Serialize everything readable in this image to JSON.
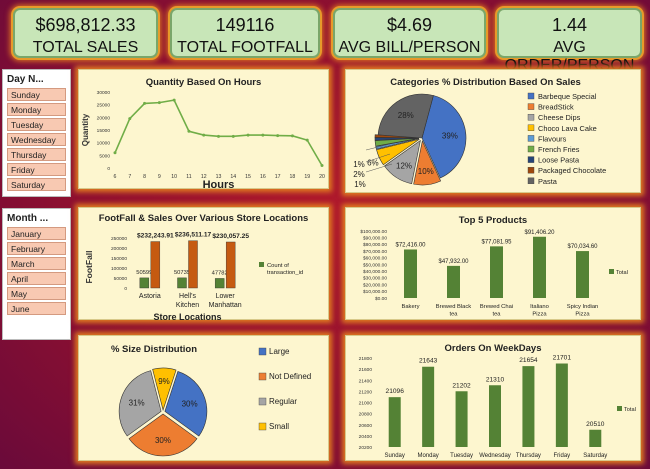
{
  "kpis": [
    {
      "value": "$698,812.33",
      "label": "TOTAL SALES"
    },
    {
      "value": "149116",
      "label": "TOTAL FOOTFALL"
    },
    {
      "value": "$4.69",
      "label": "AVG BILL/PERSON"
    },
    {
      "value": "1.44",
      "label": "AVG ORDER/PERSON"
    }
  ],
  "day_slicer": {
    "title": "Day N...",
    "items": [
      "Sunday",
      "Monday",
      "Tuesday",
      "Wednesday",
      "Thursday",
      "Friday",
      "Saturday"
    ]
  },
  "month_slicer": {
    "title": "Month ...",
    "items": [
      "January",
      "February",
      "March",
      "April",
      "May",
      "June"
    ]
  },
  "chart_data": [
    {
      "type": "line",
      "title": "Quantity Based On Hours",
      "xlabel": "Hours",
      "ylabel": "Quantity",
      "x": [
        6,
        7,
        8,
        9,
        10,
        11,
        12,
        13,
        14,
        15,
        16,
        17,
        18,
        19,
        20
      ],
      "values": [
        6000,
        19500,
        25500,
        25800,
        26800,
        14500,
        13000,
        12500,
        12500,
        13000,
        13000,
        12800,
        12700,
        11000,
        1000
      ],
      "ylim": [
        0,
        30000
      ],
      "yticks": [
        0,
        5000,
        10000,
        15000,
        20000,
        25000,
        30000
      ],
      "color": "#70ad47"
    },
    {
      "type": "pie",
      "title": "Categories % Distribution Based On Sales",
      "slices": [
        {
          "label": "Barbeque Special",
          "value": 39,
          "text": "39%",
          "color": "#4472c4"
        },
        {
          "label": "BreadStick",
          "value": 10,
          "text": "10%",
          "color": "#ed7d31"
        },
        {
          "label": "Cheese Dips",
          "value": 12,
          "text": "12%",
          "color": "#a5a5a5"
        },
        {
          "label": "Choco Lava Cake",
          "value": 6,
          "text": "6%",
          "color": "#ffc000"
        },
        {
          "label": "Flavours",
          "value": 1,
          "text": "1%",
          "color": "#5b9bd5"
        },
        {
          "label": "French Fries",
          "value": 2,
          "text": "2%",
          "color": "#70ad47"
        },
        {
          "label": "Loose Pasta",
          "value": 1,
          "text": "1%",
          "color": "#264478"
        },
        {
          "label": "Packaged Chocolate",
          "value": 1,
          "text": "1%",
          "color": "#9e480e"
        },
        {
          "label": "Pasta",
          "value": 28,
          "text": "28%",
          "color": "#636363"
        }
      ]
    },
    {
      "type": "bar",
      "title": "FootFall & Sales Over Various Store Locations",
      "xlabel": "Store Locations",
      "ylabel": "FootFall",
      "categories": [
        "Astoria",
        "Hell's Kitchen",
        "Lower Manhattan"
      ],
      "series": [
        {
          "name": "Count of transaction_id",
          "values": [
            50599,
            50735,
            47782
          ],
          "labels": [
            "50599",
            "50735",
            "47782"
          ],
          "color": "#548235"
        },
        {
          "values": [
            232243.91,
            236511.17,
            230057.25
          ],
          "labels": [
            "$232,243.91",
            "$236,511.17",
            "$230,057.25"
          ],
          "color": "#c55a11"
        }
      ],
      "ylim": [
        0,
        250000
      ],
      "yticks": [
        "0",
        "50000",
        "100000",
        "150000",
        "200000",
        "250000"
      ]
    },
    {
      "type": "bar",
      "title": "Top 5 Products",
      "categories": [
        "Bakery",
        "Brewed Black tea",
        "Brewed Chai tea",
        "Italiano Pizza",
        "Spicy Indian Pizza"
      ],
      "values": [
        72416.0,
        47932.0,
        77081.95,
        91406.2,
        70034.6
      ],
      "labels": [
        "$72,416.00",
        "$47,932.00",
        "$77,081.95",
        "$91,406.20",
        "$70,034.60"
      ],
      "legend": "Total",
      "ylim": [
        0,
        100000
      ],
      "yticks": [
        "$0.00",
        "$10,000.00",
        "$20,000.00",
        "$30,000.00",
        "$40,000.00",
        "$50,000.00",
        "$60,000.00",
        "$70,000.00",
        "$80,000.00",
        "$90,000.00",
        "$100,000.00"
      ],
      "color": "#548235"
    },
    {
      "type": "pie",
      "title": "% Size Distribution",
      "slices": [
        {
          "label": "Large",
          "value": 30,
          "text": "30%",
          "color": "#4472c4"
        },
        {
          "label": "Not Defined",
          "value": 30,
          "text": "30%",
          "color": "#ed7d31"
        },
        {
          "label": "Regular",
          "value": 31,
          "text": "31%",
          "color": "#a5a5a5"
        },
        {
          "label": "Small",
          "value": 9,
          "text": "9%",
          "color": "#ffc000"
        }
      ]
    },
    {
      "type": "bar",
      "title": "Orders On WeekDays",
      "categories": [
        "Sunday",
        "Monday",
        "Tuesday",
        "Wednesday",
        "Thursday",
        "Friday",
        "Saturday"
      ],
      "values": [
        21096,
        21643,
        21202,
        21310,
        21654,
        21701,
        20510
      ],
      "labels": [
        "21096",
        "21643",
        "21202",
        "21310",
        "21654",
        "21701",
        "20510"
      ],
      "legend": "Total",
      "ylim": [
        20200,
        21800
      ],
      "yticks": [
        "20200",
        "20400",
        "20600",
        "20800",
        "21000",
        "21200",
        "21400",
        "21600",
        "21800"
      ],
      "color": "#548235"
    }
  ]
}
